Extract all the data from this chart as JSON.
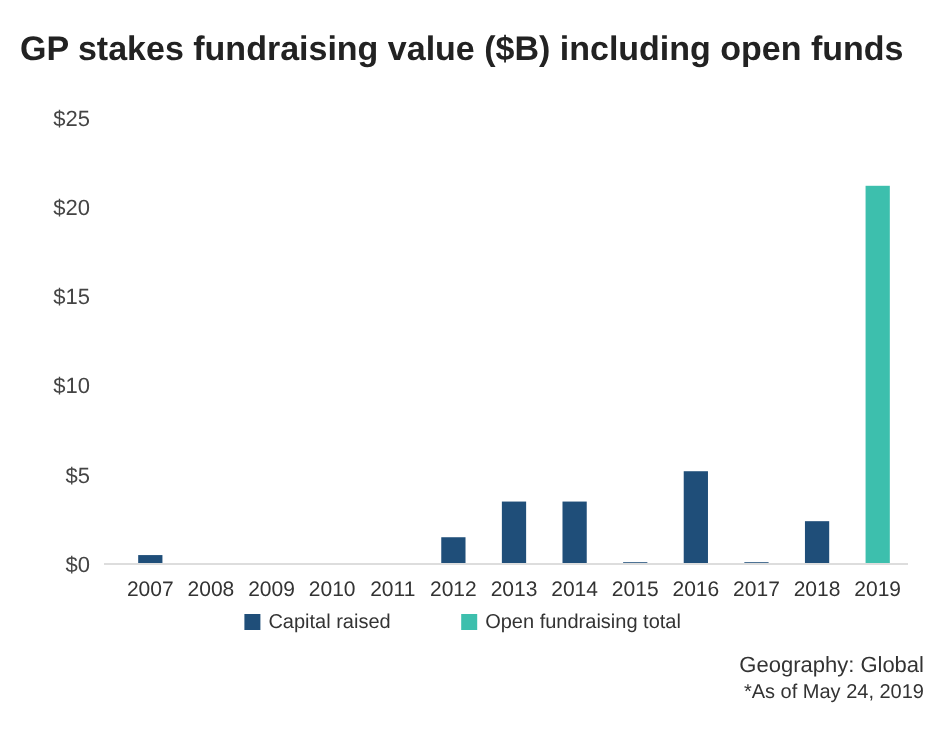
{
  "chart_data": {
    "type": "bar",
    "title": "GP stakes fundraising value ($B) including open funds",
    "categories": [
      "2007",
      "2008",
      "2009",
      "2010",
      "2011",
      "2012",
      "2013",
      "2014",
      "2015",
      "2016",
      "2017",
      "2018",
      "2019"
    ],
    "series": [
      {
        "name": "Capital raised",
        "color": "#1f4e79",
        "values": [
          0.5,
          0,
          0,
          0,
          0,
          1.5,
          3.5,
          3.5,
          0.1,
          5.2,
          0.1,
          2.4,
          null
        ]
      },
      {
        "name": "Open fundraising total",
        "color": "#3dbfad",
        "values": [
          null,
          null,
          null,
          null,
          null,
          null,
          null,
          null,
          null,
          null,
          null,
          null,
          21.2
        ]
      }
    ],
    "ylim": [
      0,
      25
    ],
    "yticks": [
      {
        "value": 0,
        "label": "$0"
      },
      {
        "value": 5,
        "label": "$5"
      },
      {
        "value": 10,
        "label": "$10"
      },
      {
        "value": 15,
        "label": "$15"
      },
      {
        "value": 20,
        "label": "$20"
      },
      {
        "value": 25,
        "label": "$25"
      }
    ],
    "legend": "bottom",
    "annotations": [
      "Geography: Global",
      "*As of May 24, 2019"
    ]
  }
}
